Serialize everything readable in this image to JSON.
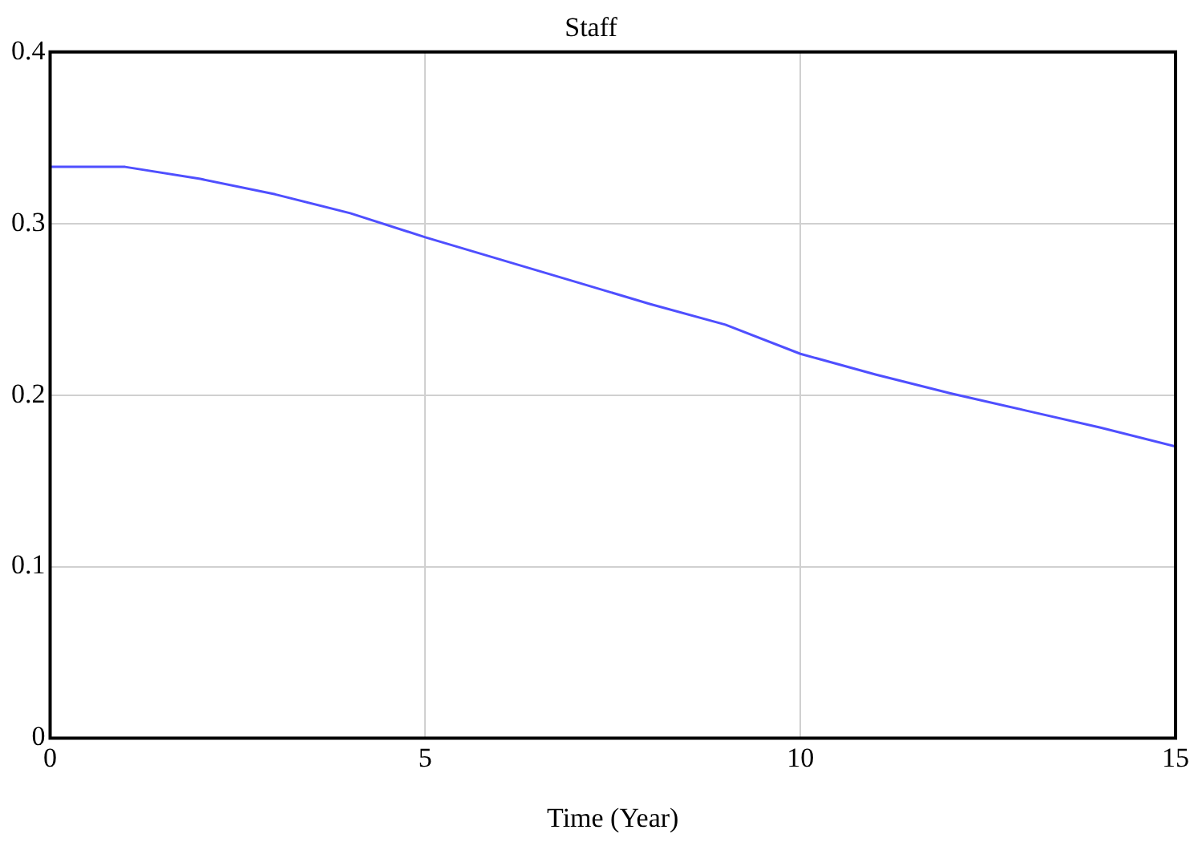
{
  "chart_data": {
    "type": "line",
    "title": "Staff",
    "xlabel": "Time (Year)",
    "x": [
      0,
      1,
      2,
      3,
      4,
      5,
      6,
      7,
      8,
      9,
      10,
      11,
      12,
      13,
      14,
      15
    ],
    "series": [
      {
        "color": "#4f4fff",
        "values": [
          0.333,
          0.333,
          0.326,
          0.317,
          0.306,
          0.292,
          0.279,
          0.266,
          0.253,
          0.241,
          0.224,
          0.212,
          0.201,
          0.191,
          0.181,
          0.17
        ]
      }
    ],
    "xlim": [
      0,
      15
    ],
    "xticks": [
      0,
      5,
      10,
      15
    ],
    "ylim": [
      0,
      0.4
    ],
    "yticks": [
      0,
      0.1,
      0.2,
      0.3,
      0.4
    ],
    "grid": true,
    "marker": "none",
    "line_style": "solid",
    "legend": false
  }
}
